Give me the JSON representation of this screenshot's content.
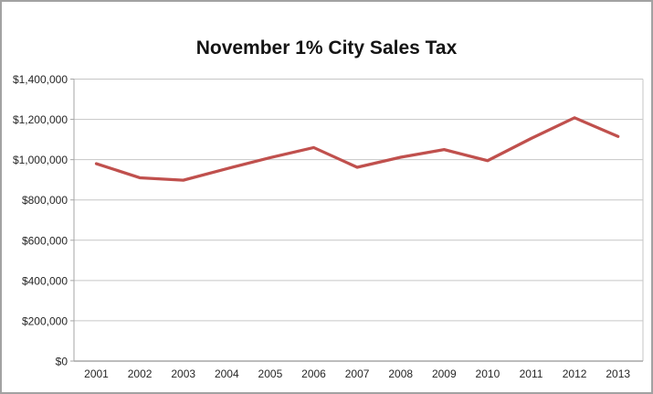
{
  "chart_data": {
    "type": "line",
    "title": "November 1% City Sales Tax",
    "categories": [
      "2001",
      "2002",
      "2003",
      "2004",
      "2005",
      "2006",
      "2007",
      "2008",
      "2009",
      "2010",
      "2011",
      "2012",
      "2013"
    ],
    "values": [
      980000,
      910000,
      898000,
      955000,
      1010000,
      1060000,
      962000,
      1012000,
      1050000,
      995000,
      1105000,
      1208000,
      1115000
    ],
    "xlabel": "",
    "ylabel": "",
    "ylim": [
      0,
      1400000
    ],
    "y_tick_values": [
      0,
      200000,
      400000,
      600000,
      800000,
      1000000,
      1200000,
      1400000
    ],
    "y_tick_labels": [
      "$0",
      "$200,000",
      "$400,000",
      "$600,000",
      "$800,000",
      "$1,000,000",
      "$1,200,000",
      "$1,400,000"
    ],
    "grid": true,
    "legend": "none",
    "colors": {
      "line": "#C0504D",
      "gridline": "#C6C6C6",
      "axis": "#A6A6A6",
      "text": "#262626",
      "frame_border": "#A2A2A2",
      "background": "#FFFFFF"
    }
  }
}
